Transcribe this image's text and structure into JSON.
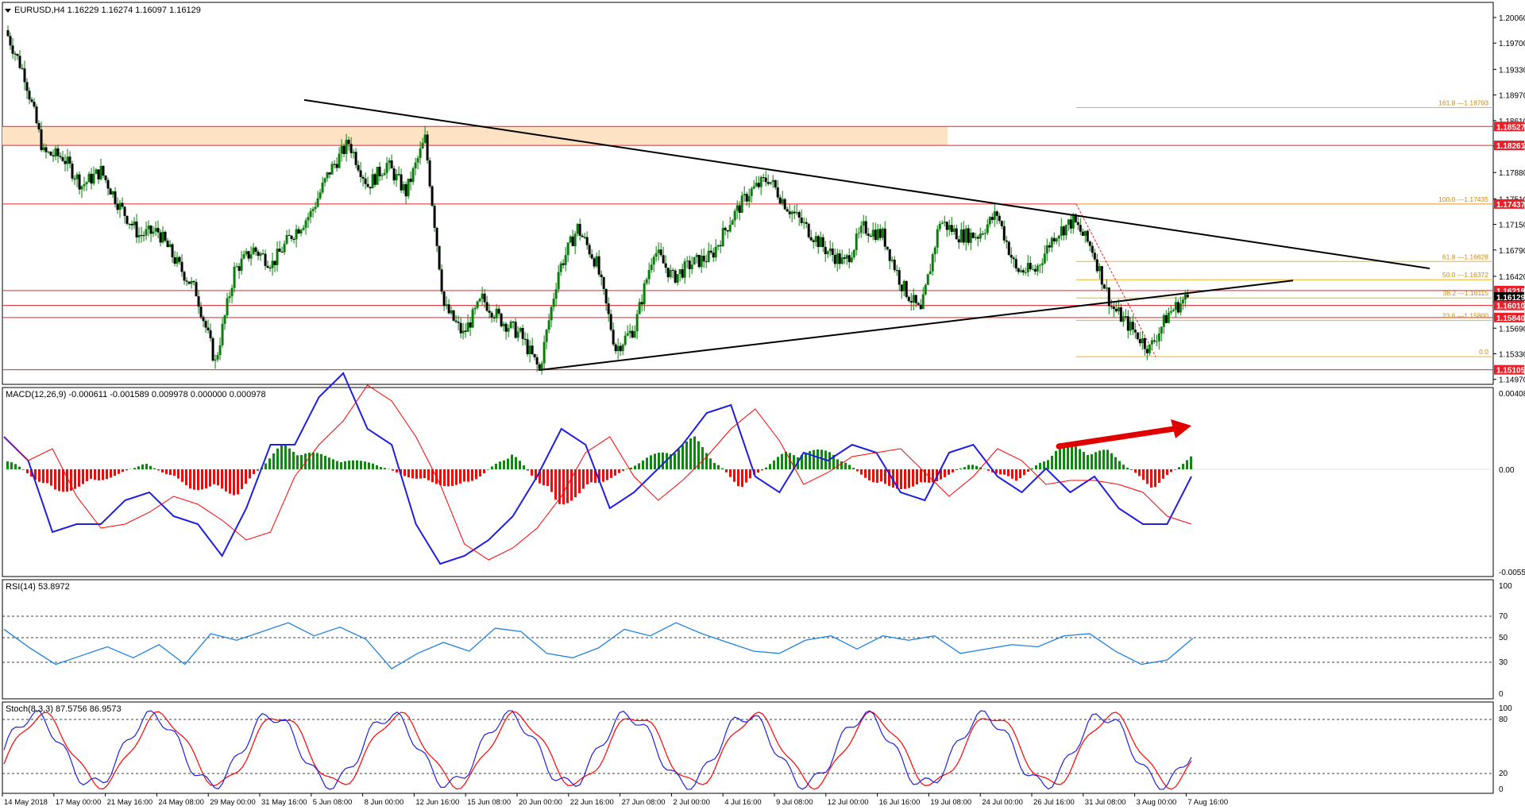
{
  "header": {
    "main_label": "EURUSD,H4  1.16229 1.16274 1.16097 1.16129",
    "macd_label": "MACD(12,26,9) -0.000611 -0.001589 0.009978 0.000000 0.000978",
    "rsi_label": "RSI(14) 53.8972",
    "stoch_label": "Stoch(8,3,3) 87.5756 86.9573"
  },
  "colors": {
    "background": "#ffffff",
    "frame": "#000000",
    "candle": "#0a7d0a",
    "bull": "#0a8a0a",
    "bear": "#ff0000",
    "macd_line": "#1f1fe0",
    "signal_line": "#ff0000",
    "level_line": "#e8202a",
    "fib_line": "#f0b020",
    "zone_fill": "#fde3c3",
    "arrow": "#e00000",
    "rsi_line": "#1f82e0",
    "stoch_main": "#2020e0",
    "stoch_signal": "#ff0000"
  },
  "price_axis": {
    "ticks": [
      "1.20060",
      "1.19700",
      "1.19330",
      "1.18970",
      "1.18610",
      "1.18250",
      "1.17880",
      "1.17510",
      "1.17150",
      "1.16790",
      "1.16420",
      "1.16060",
      "1.15690",
      "1.15330",
      "1.14970"
    ]
  },
  "level_tags": [
    {
      "label": "1.18527",
      "value": 1.18527
    },
    {
      "label": "1.18261",
      "value": 1.18261
    },
    {
      "label": "1.17437",
      "value": 1.17437
    },
    {
      "label": "1.16219",
      "value": 1.16219
    },
    {
      "label": "1.16129",
      "value": 1.16129
    },
    {
      "label": "1.16010",
      "value": 1.1601
    },
    {
      "label": "1.15840",
      "value": 1.1584
    },
    {
      "label": "1.15105",
      "value": 1.15105
    }
  ],
  "fib_labels": [
    {
      "label": "161.8 ---1.18793",
      "value": 1.18793
    },
    {
      "label": "100.0 ---1.17435",
      "value": 1.17435
    },
    {
      "label": "61.8 ---1.16628",
      "value": 1.16628
    },
    {
      "label": "50.0 ---1.16372",
      "value": 1.16372
    },
    {
      "label": "38.2 ---1.16115",
      "value": 1.16115
    },
    {
      "label": "23.6 ---1.15800",
      "value": 1.158
    },
    {
      "label": "0.0",
      "value": 1.1529
    }
  ],
  "macd_axis": {
    "top": "0.004089",
    "zero": "0.00",
    "bottom": "-0.005568"
  },
  "rsi_axis": [
    "100",
    "70",
    "50",
    "30",
    "0"
  ],
  "stoch_axis": [
    "100",
    "80",
    "20",
    "0"
  ],
  "time_axis": [
    "14 May 2018",
    "17 May 00:00",
    "21 May 16:00",
    "24 May 08:00",
    "29 May 00:00",
    "31 May 16:00",
    "5 Jun 08:00",
    "8 Jun 00:00",
    "12 Jun 16:00",
    "15 Jun 08:00",
    "20 Jun 00:00",
    "22 Jun 16:00",
    "27 Jun 08:00",
    "2 Jul 00:00",
    "4 Jul 16:00",
    "9 Jul 08:00",
    "12 Jul 00:00",
    "16 Jul 16:00",
    "19 Jul 08:00",
    "24 Jul 00:00",
    "26 Jul 16:00",
    "31 Jul 08:00",
    "3 Aug 00:00",
    "7 Aug 16:00"
  ],
  "chart_data": {
    "type": "line",
    "symbol": "EURUSD",
    "timeframe": "H4",
    "ohlc_last": {
      "open": 1.16229,
      "high": 1.16274,
      "low": 1.16097,
      "close": 1.16129
    },
    "ylim": [
      1.1497,
      1.2006
    ],
    "price_path": [
      {
        "t": "14 May 2018",
        "v": 1.1988
      },
      {
        "t": "15 May",
        "v": 1.1925
      },
      {
        "t": "16 May",
        "v": 1.1815
      },
      {
        "t": "17 May 00:00",
        "v": 1.181
      },
      {
        "t": "18 May",
        "v": 1.177
      },
      {
        "t": "21 May 16:00",
        "v": 1.179
      },
      {
        "t": "22 May",
        "v": 1.174
      },
      {
        "t": "23 May",
        "v": 1.17
      },
      {
        "t": "24 May 08:00",
        "v": 1.1705
      },
      {
        "t": "25 May",
        "v": 1.166
      },
      {
        "t": "28 May",
        "v": 1.162
      },
      {
        "t": "29 May 00:00",
        "v": 1.152
      },
      {
        "t": "30 May",
        "v": 1.165
      },
      {
        "t": "31 May 16:00",
        "v": 1.168
      },
      {
        "t": "1 Jun",
        "v": 1.166
      },
      {
        "t": "4 Jun",
        "v": 1.17
      },
      {
        "t": "5 Jun 08:00",
        "v": 1.173
      },
      {
        "t": "6 Jun",
        "v": 1.179
      },
      {
        "t": "7 Jun",
        "v": 1.183
      },
      {
        "t": "8 Jun 00:00",
        "v": 1.177
      },
      {
        "t": "11 Jun",
        "v": 1.18
      },
      {
        "t": "12 Jun 16:00",
        "v": 1.176
      },
      {
        "t": "14 Jun",
        "v": 1.1835
      },
      {
        "t": "14 Jun late",
        "v": 1.16
      },
      {
        "t": "15 Jun 08:00",
        "v": 1.156
      },
      {
        "t": "18 Jun",
        "v": 1.161
      },
      {
        "t": "19 Jun",
        "v": 1.158
      },
      {
        "t": "20 Jun 00:00",
        "v": 1.156
      },
      {
        "t": "21 Jun",
        "v": 1.151
      },
      {
        "t": "22 Jun 16:00",
        "v": 1.165
      },
      {
        "t": "25 Jun",
        "v": 1.171
      },
      {
        "t": "26 Jun",
        "v": 1.166
      },
      {
        "t": "27 Jun 08:00",
        "v": 1.154
      },
      {
        "t": "28 Jun",
        "v": 1.157
      },
      {
        "t": "29 Jun",
        "v": 1.168
      },
      {
        "t": "2 Jul 00:00",
        "v": 1.164
      },
      {
        "t": "3 Jul",
        "v": 1.166
      },
      {
        "t": "4 Jul 16:00",
        "v": 1.167
      },
      {
        "t": "5 Jul",
        "v": 1.172
      },
      {
        "t": "6 Jul",
        "v": 1.176
      },
      {
        "t": "9 Jul 08:00",
        "v": 1.178
      },
      {
        "t": "10 Jul",
        "v": 1.174
      },
      {
        "t": "11 Jul",
        "v": 1.171
      },
      {
        "t": "12 Jul 00:00",
        "v": 1.168
      },
      {
        "t": "13 Jul",
        "v": 1.166
      },
      {
        "t": "16 Jul 16:00",
        "v": 1.171
      },
      {
        "t": "17 Jul",
        "v": 1.17
      },
      {
        "t": "18 Jul",
        "v": 1.163
      },
      {
        "t": "19 Jul 08:00",
        "v": 1.159
      },
      {
        "t": "20 Jul",
        "v": 1.172
      },
      {
        "t": "23 Jul",
        "v": 1.17
      },
      {
        "t": "24 Jul 00:00",
        "v": 1.17
      },
      {
        "t": "25 Jul",
        "v": 1.173
      },
      {
        "t": "26 Jul 16:00",
        "v": 1.165
      },
      {
        "t": "27 Jul",
        "v": 1.165
      },
      {
        "t": "30 Jul",
        "v": 1.17
      },
      {
        "t": "31 Jul 08:00",
        "v": 1.172
      },
      {
        "t": "1 Aug",
        "v": 1.168
      },
      {
        "t": "2 Aug",
        "v": 1.16
      },
      {
        "t": "3 Aug 00:00",
        "v": 1.157
      },
      {
        "t": "6 Aug",
        "v": 1.154
      },
      {
        "t": "7 Aug",
        "v": 1.159
      },
      {
        "t": "7 Aug 16:00",
        "v": 1.16129
      }
    ],
    "trendlines": [
      {
        "name": "descending resistance",
        "from": [
          "1 Jun",
          1.189
        ],
        "to": [
          "8 Aug",
          1.1653
        ]
      },
      {
        "name": "ascending support",
        "from": [
          "20 Jun 00:00",
          1.151
        ],
        "to": [
          "8 Aug",
          1.1636
        ]
      }
    ],
    "resistance_zone": {
      "from": 1.18261,
      "to": 1.18527
    },
    "macd": {
      "zero": 0,
      "ylim": [
        -0.005568,
        0.004089
      ],
      "histogram": [
        0.001,
        -0.002,
        -0.001,
        0.0005,
        -0.0015,
        -0.002,
        0.002,
        0.001,
        0.0005,
        -0.001,
        -0.0015,
        0.0015,
        -0.003,
        -0.001,
        0.001,
        0.0025,
        -0.0015,
        0.0015,
        0.0015,
        -0.0015,
        -0.0015,
        0.0005,
        -0.001,
        0.002,
        0.0015,
        -0.0015,
        0.0015
      ]
    },
    "rsi": {
      "period": 14,
      "last": 53.8972,
      "levels": [
        70,
        50,
        30
      ],
      "values": [
        62,
        45,
        30,
        38,
        46,
        36,
        48,
        30,
        58,
        52,
        60,
        68,
        56,
        64,
        53,
        26,
        40,
        50,
        42,
        63,
        60,
        40,
        36,
        45,
        62,
        56,
        68,
        58,
        50,
        42,
        40,
        52,
        56,
        44,
        56,
        52,
        56,
        40,
        44,
        48,
        46,
        56,
        58,
        42,
        30,
        34,
        53.9
      ]
    },
    "stochastic": {
      "params": [
        8,
        3,
        3
      ],
      "main_last": 87.5756,
      "signal_last": 86.9573,
      "levels": [
        80,
        20
      ]
    }
  }
}
